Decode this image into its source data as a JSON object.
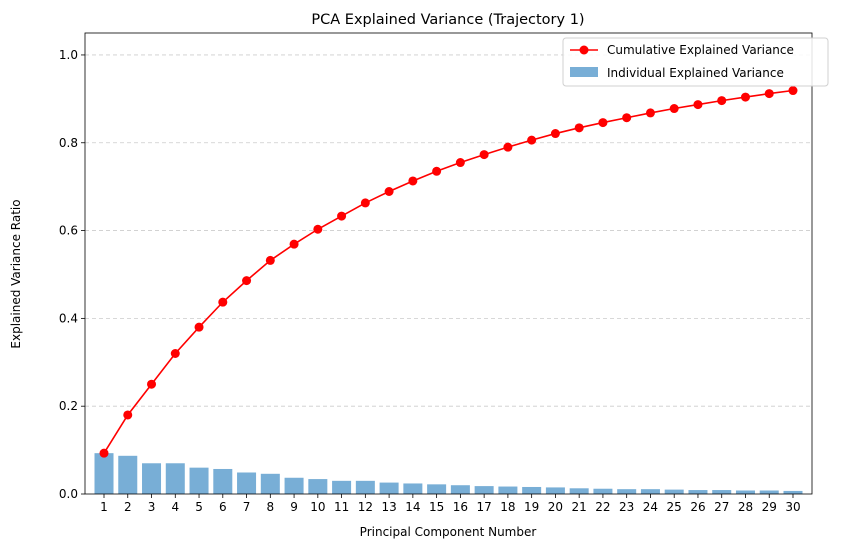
{
  "chart_data": {
    "type": "bar",
    "title": "PCA Explained Variance (Trajectory 1)",
    "xlabel": "Principal Component Number",
    "ylabel": "Explained Variance Ratio",
    "ylim": [
      0,
      1.05
    ],
    "yticks": [
      "0.0",
      "0.2",
      "0.4",
      "0.6",
      "0.8",
      "1.0"
    ],
    "grid": "horizontal dashed",
    "legend_position": "top-right",
    "categories": [
      "1",
      "2",
      "3",
      "4",
      "5",
      "6",
      "7",
      "8",
      "9",
      "10",
      "11",
      "12",
      "13",
      "14",
      "15",
      "16",
      "17",
      "18",
      "19",
      "20",
      "21",
      "22",
      "23",
      "24",
      "25",
      "26",
      "27",
      "28",
      "29",
      "30"
    ],
    "series": [
      {
        "name": "Cumulative Explained Variance",
        "kind": "line",
        "color": "#ff0000",
        "values": [
          0.093,
          0.18,
          0.25,
          0.32,
          0.38,
          0.437,
          0.486,
          0.532,
          0.569,
          0.603,
          0.633,
          0.663,
          0.689,
          0.713,
          0.735,
          0.755,
          0.773,
          0.79,
          0.806,
          0.821,
          0.834,
          0.846,
          0.857,
          0.868,
          0.878,
          0.887,
          0.896,
          0.904,
          0.912,
          0.919
        ]
      },
      {
        "name": "Individual Explained Variance",
        "kind": "bar",
        "color": "#78aed6",
        "values": [
          0.093,
          0.087,
          0.07,
          0.07,
          0.06,
          0.057,
          0.049,
          0.046,
          0.037,
          0.034,
          0.03,
          0.03,
          0.026,
          0.024,
          0.022,
          0.02,
          0.018,
          0.017,
          0.016,
          0.015,
          0.013,
          0.012,
          0.011,
          0.011,
          0.01,
          0.009,
          0.009,
          0.008,
          0.008,
          0.007
        ]
      }
    ]
  }
}
